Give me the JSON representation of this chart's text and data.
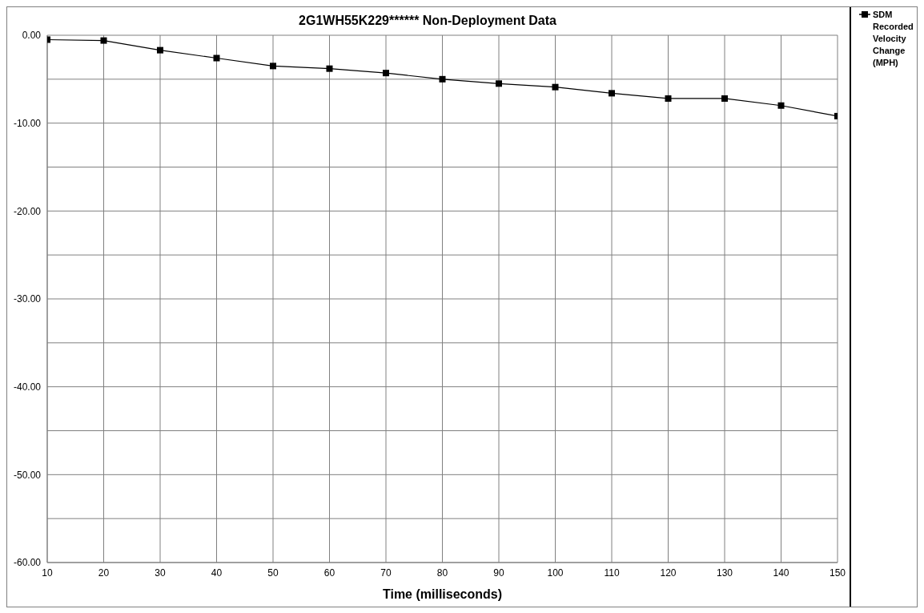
{
  "chart_data": {
    "type": "line",
    "title": "2G1WH55K229******  Non-Deployment Data",
    "xlabel": "Time (milliseconds)",
    "x": [
      10,
      20,
      30,
      40,
      50,
      60,
      70,
      80,
      90,
      100,
      110,
      120,
      130,
      140,
      150
    ],
    "series": [
      {
        "name": "SDM Recorded Velocity Change (MPH)",
        "color": "#000000",
        "values": [
          -0.5,
          -0.6,
          -1.7,
          -2.6,
          -3.5,
          -3.8,
          -4.3,
          -5.0,
          -5.5,
          -5.9,
          -6.6,
          -7.2,
          -7.2,
          -8.0,
          -9.2
        ]
      }
    ],
    "xlim": [
      10,
      150
    ],
    "xticks": [
      10,
      20,
      30,
      40,
      50,
      60,
      70,
      80,
      90,
      100,
      110,
      120,
      130,
      140,
      150
    ],
    "ylim": [
      -60,
      0
    ],
    "yticks": [
      {
        "value": -60,
        "label": "-60.00"
      },
      {
        "value": -55,
        "label": null
      },
      {
        "value": -50,
        "label": "-50.00"
      },
      {
        "value": -45,
        "label": null
      },
      {
        "value": -40,
        "label": "-40.00"
      },
      {
        "value": -35,
        "label": null
      },
      {
        "value": -30,
        "label": "-30.00"
      },
      {
        "value": -25,
        "label": null
      },
      {
        "value": -20,
        "label": "-20.00"
      },
      {
        "value": -15,
        "label": null
      },
      {
        "value": -10,
        "label": "-10.00"
      },
      {
        "value": -5,
        "label": null
      },
      {
        "value": 0,
        "label": "0.00"
      }
    ],
    "grid": true,
    "legend": "top right",
    "marker": "square",
    "line_style": "solid"
  }
}
